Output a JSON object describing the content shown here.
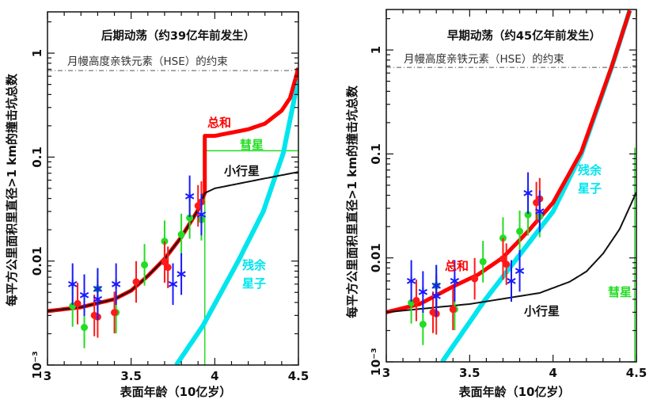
{
  "chart_data": [
    {
      "type": "line",
      "title": "后期动荡（约39亿年前发生）",
      "xlabel": "表面年龄（10亿岁）",
      "ylabel": "每平方公里面积里直径>1 km的撞击坑总数",
      "xlim": [
        3,
        4.5
      ],
      "ylim": [
        0.001,
        2.7
      ],
      "yscale": "log",
      "xticks": [
        "3",
        "3.5",
        "4",
        "4.5"
      ],
      "yticks": [
        "10⁻³",
        "0.01",
        "0.1",
        "1"
      ],
      "hse_constraint": {
        "label": "月幔高度亲铁元素（HSE）的约束",
        "value": 0.68,
        "color": "#555555"
      },
      "series": [
        {
          "name": "小行星",
          "color": "#111111",
          "x": [
            3.0,
            3.2,
            3.4,
            3.5,
            3.6,
            3.7,
            3.8,
            3.9,
            3.94,
            4.0,
            4.2,
            4.4,
            4.5
          ],
          "y": [
            0.0033,
            0.0036,
            0.0043,
            0.0052,
            0.0072,
            0.0105,
            0.017,
            0.031,
            0.045,
            0.05,
            0.058,
            0.067,
            0.072
          ]
        },
        {
          "name": "彗星",
          "color": "#22dd22",
          "x": [
            3.94,
            3.94,
            4.5
          ],
          "y": [
            0.001,
            0.115,
            0.115
          ]
        },
        {
          "name": "残余星子",
          "color": "#00e5ee",
          "x": [
            3.77,
            3.93,
            4.14,
            4.29,
            4.41,
            4.5
          ],
          "y": [
            0.001,
            0.0024,
            0.01,
            0.03,
            0.11,
            0.57
          ]
        },
        {
          "name": "总和",
          "color": "#ff0000",
          "x": [
            3.0,
            3.2,
            3.4,
            3.5,
            3.6,
            3.7,
            3.8,
            3.9,
            3.94,
            3.94,
            4.0,
            4.2,
            4.3,
            4.4,
            4.45,
            4.5
          ],
          "y": [
            0.0033,
            0.0036,
            0.0043,
            0.0052,
            0.0072,
            0.0105,
            0.017,
            0.031,
            0.045,
            0.16,
            0.16,
            0.185,
            0.21,
            0.28,
            0.37,
            0.72
          ]
        }
      ],
      "observations": [
        {
          "color": "#22dd22",
          "marker": "circle",
          "x": [
            3.15,
            3.22,
            3.3,
            3.41,
            3.58,
            3.7,
            3.8,
            3.85,
            3.92
          ],
          "y": [
            0.0037,
            0.0023,
            0.0054,
            0.0032,
            0.0092,
            0.0155,
            0.018,
            0.026,
            0.025
          ]
        },
        {
          "color": "#ff1a1a",
          "marker": "circle",
          "x": [
            3.18,
            3.28,
            3.3,
            3.4,
            3.53,
            3.7,
            3.72,
            3.9,
            3.92
          ],
          "y": [
            0.0039,
            0.003,
            0.0029,
            0.0032,
            0.0063,
            0.0098,
            0.0087,
            0.034,
            0.037
          ]
        },
        {
          "color": "#1a1aff",
          "marker": "asterisk",
          "x": [
            3.15,
            3.22,
            3.3,
            3.3,
            3.41,
            3.75,
            3.8,
            3.85,
            3.92
          ],
          "y": [
            0.006,
            0.0047,
            0.0054,
            0.0043,
            0.006,
            0.006,
            0.0075,
            0.042,
            0.028
          ]
        }
      ]
    },
    {
      "type": "line",
      "title": "早期动荡（约45亿年前发生）",
      "xlabel": "表面年龄（10亿岁）",
      "ylabel": "每平方公里面积里直径>1 km的撞击坑总数",
      "xlim": [
        3,
        4.5
      ],
      "ylim": [
        0.001,
        2.7
      ],
      "yscale": "log",
      "xticks": [
        "3",
        "3.5",
        "4",
        "4.5"
      ],
      "yticks": [
        "10⁻³",
        "0.01",
        "0.1",
        "1"
      ],
      "hse_constraint": {
        "label": "月幔高度亲铁元素（HSE）的约束",
        "value": 0.68,
        "color": "#555555"
      },
      "series": [
        {
          "name": "小行星",
          "color": "#111111",
          "x": [
            3.0,
            3.5,
            3.92,
            4.1,
            4.2,
            4.3,
            4.4,
            4.5
          ],
          "y": [
            0.003,
            0.0036,
            0.0046,
            0.0059,
            0.0074,
            0.011,
            0.019,
            0.043
          ]
        },
        {
          "name": "彗星",
          "color": "#22dd22",
          "x": [
            4.49,
            4.49
          ],
          "y": [
            0.001,
            0.115
          ]
        },
        {
          "name": "残余星子",
          "color": "#00e5ee",
          "x": [
            3.335,
            3.59,
            4.0,
            4.17,
            4.35,
            4.46
          ],
          "y": [
            0.001,
            0.0039,
            0.028,
            0.1,
            0.67,
            2.4
          ]
        },
        {
          "name": "总和",
          "color": "#ff0000",
          "x": [
            3.0,
            3.2,
            3.4,
            3.55,
            3.7,
            3.85,
            4.0,
            4.17,
            4.35,
            4.46
          ],
          "y": [
            0.003,
            0.0036,
            0.0053,
            0.0069,
            0.0101,
            0.018,
            0.034,
            0.105,
            0.68,
            2.4
          ]
        }
      ],
      "observations": [
        {
          "color": "#22dd22",
          "marker": "circle",
          "x": [
            3.15,
            3.22,
            3.3,
            3.41,
            3.58,
            3.7,
            3.8,
            3.85,
            3.92
          ],
          "y": [
            0.0037,
            0.0023,
            0.0054,
            0.0032,
            0.0092,
            0.0155,
            0.018,
            0.026,
            0.025
          ]
        },
        {
          "color": "#ff1a1a",
          "marker": "circle",
          "x": [
            3.18,
            3.28,
            3.3,
            3.4,
            3.53,
            3.7,
            3.72,
            3.9,
            3.92
          ],
          "y": [
            0.0039,
            0.003,
            0.0029,
            0.0032,
            0.0063,
            0.0098,
            0.0087,
            0.034,
            0.037
          ]
        },
        {
          "color": "#1a1aff",
          "marker": "asterisk",
          "x": [
            3.15,
            3.22,
            3.3,
            3.3,
            3.41,
            3.75,
            3.8,
            3.85,
            3.92
          ],
          "y": [
            0.006,
            0.0047,
            0.0054,
            0.0043,
            0.006,
            0.006,
            0.0075,
            0.042,
            0.028
          ]
        }
      ]
    }
  ]
}
